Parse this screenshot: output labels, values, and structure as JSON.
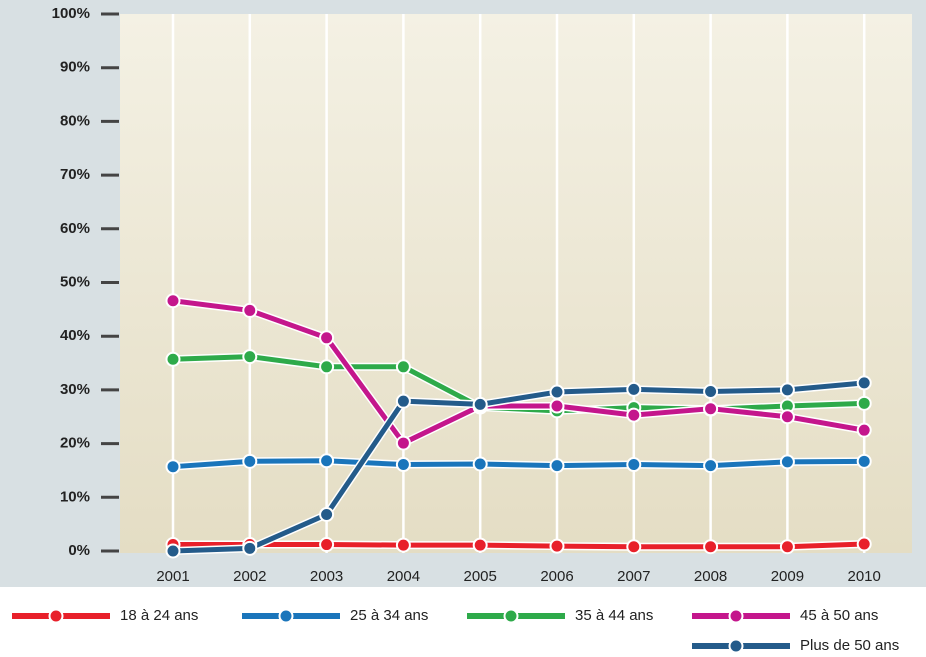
{
  "chart_data": {
    "type": "line",
    "categories": [
      "2001",
      "2002",
      "2003",
      "2004",
      "2005",
      "2006",
      "2007",
      "2008",
      "2009",
      "2010"
    ],
    "series": [
      {
        "name": "18 à 24 ans",
        "color": "#e8202a",
        "values": [
          1.2,
          1.2,
          1.2,
          1.1,
          1.1,
          0.9,
          0.8,
          0.8,
          0.8,
          1.3
        ]
      },
      {
        "name": "25 à 34 ans",
        "color": "#1a75bb",
        "values": [
          15.7,
          16.7,
          16.8,
          16.1,
          16.2,
          15.9,
          16.1,
          15.9,
          16.6,
          16.7
        ]
      },
      {
        "name": "35 à 44 ans",
        "color": "#2eaa4a",
        "values": [
          35.7,
          36.2,
          34.3,
          34.3,
          26.8,
          26.1,
          26.7,
          26.4,
          27.0,
          27.5
        ]
      },
      {
        "name": "45 à 50 ans",
        "color": "#c4168c",
        "values": [
          46.6,
          44.8,
          39.7,
          20.1,
          27.0,
          27.0,
          25.3,
          26.5,
          25.0,
          22.5
        ]
      },
      {
        "name": "Plus de 50 ans",
        "color": "#245b8a",
        "values": [
          0.0,
          0.5,
          6.8,
          27.9,
          27.3,
          29.6,
          30.1,
          29.7,
          30.0,
          31.3
        ]
      }
    ],
    "ylim": [
      0,
      100
    ],
    "yticks": [
      {
        "value": 0,
        "label": "0%"
      },
      {
        "value": 10,
        "label": "10%"
      },
      {
        "value": 20,
        "label": "20%"
      },
      {
        "value": 30,
        "label": "30%"
      },
      {
        "value": 40,
        "label": "40%"
      },
      {
        "value": 50,
        "label": "50%"
      },
      {
        "value": 60,
        "label": "60%"
      },
      {
        "value": 70,
        "label": "70%"
      },
      {
        "value": 80,
        "label": "80%"
      },
      {
        "value": 90,
        "label": "90%"
      },
      {
        "value": 100,
        "label": "100%"
      }
    ],
    "grid": true
  }
}
